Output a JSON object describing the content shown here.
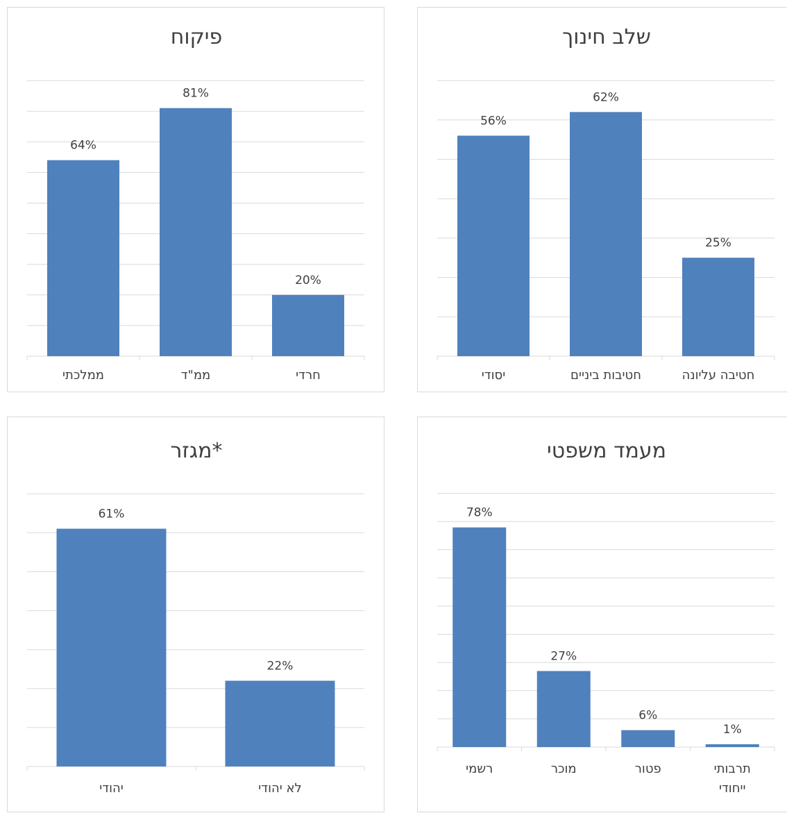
{
  "charts": [
    {
      "id": "pikuach",
      "chart_data": {
        "type": "bar",
        "title": "פיקוח",
        "categories": [
          "ממלכתי",
          "ממ\"ד",
          "חרדי"
        ],
        "values": [
          64,
          81,
          20
        ],
        "value_labels": [
          "64%",
          "81%",
          "20%"
        ],
        "ylim": [
          0,
          90
        ],
        "grid": true
      }
    },
    {
      "id": "shlav",
      "chart_data": {
        "type": "bar",
        "title": "שלב חינוך",
        "categories": [
          "יסודי",
          "חטיבות ביניים",
          "חטיבה עליונה"
        ],
        "values": [
          56,
          62,
          25
        ],
        "value_labels": [
          "56%",
          "62%",
          "25%"
        ],
        "ylim": [
          0,
          70
        ],
        "grid": true
      }
    },
    {
      "id": "migzar",
      "chart_data": {
        "type": "bar",
        "title": "מגזר*",
        "categories": [
          "יהודי",
          "לא יהודי"
        ],
        "values": [
          61,
          22
        ],
        "value_labels": [
          "61%",
          "22%"
        ],
        "ylim": [
          0,
          70
        ],
        "grid": true
      }
    },
    {
      "id": "maamad",
      "chart_data": {
        "type": "bar",
        "title": "מעמד משפטי",
        "categories": [
          [
            "רשמי"
          ],
          [
            "מוכר"
          ],
          [
            "פטור"
          ],
          [
            "תרבותי",
            "ייחודי"
          ]
        ],
        "values": [
          78,
          27,
          6,
          1
        ],
        "value_labels": [
          "78%",
          "27%",
          "6%",
          "1%"
        ],
        "ylim": [
          0,
          90
        ],
        "grid": true
      }
    }
  ]
}
